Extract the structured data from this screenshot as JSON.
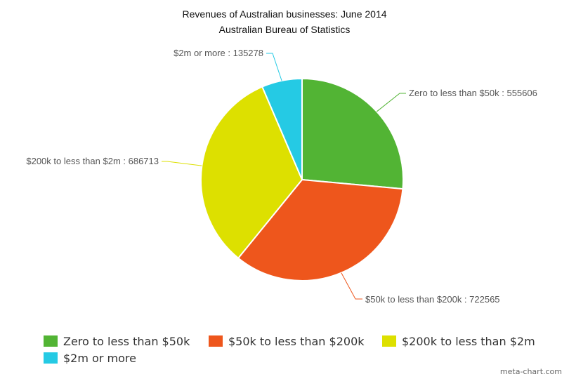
{
  "chart_data": {
    "type": "pie",
    "title": "Revenues of Australian businesses: June 2014",
    "subtitle": "Australian Bureau of Statistics",
    "categories": [
      "Zero to less than $50k",
      "$50k to less than $200k",
      "$200k to less than $2m",
      "$2m or more"
    ],
    "values": [
      555606,
      722565,
      686713,
      135278
    ],
    "colors": [
      "#52b434",
      "#ee561c",
      "#dde000",
      "#25cae4"
    ],
    "data_labels": [
      "Zero to less than $50k : 555606",
      "$50k to less than $200k : 722565",
      "$200k to less than $2m : 686713",
      "$2m or more : 135278"
    ],
    "legend_position": "bottom-left",
    "start_angle": "12 o'clock, clockwise"
  },
  "credit": "meta-chart.com"
}
